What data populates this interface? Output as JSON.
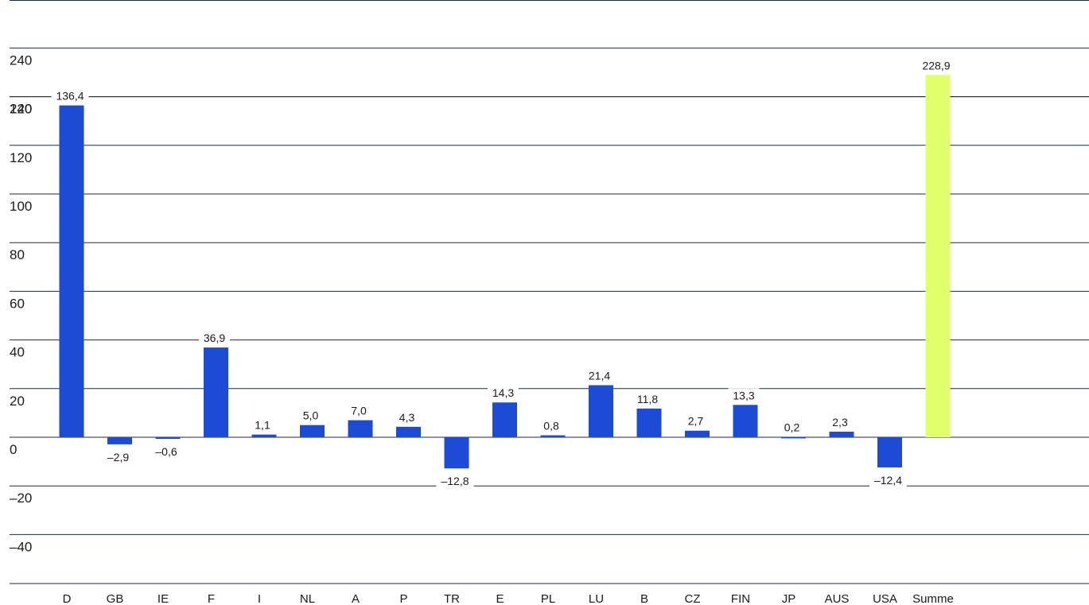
{
  "chart_data": {
    "type": "bar",
    "categories": [
      "D",
      "GB",
      "IE",
      "F",
      "I",
      "NL",
      "A",
      "P",
      "TR",
      "E",
      "PL",
      "LU",
      "B",
      "CZ",
      "FIN",
      "JP",
      "AUS",
      "USA",
      "Summe"
    ],
    "values": [
      136.4,
      -2.9,
      -0.6,
      36.9,
      1.1,
      5.0,
      7.0,
      4.3,
      -12.8,
      14.3,
      0.8,
      21.4,
      11.8,
      2.7,
      13.3,
      0.2,
      2.3,
      -12.4,
      228.9
    ],
    "value_labels": [
      "136,4",
      "–2,9",
      "–0,6",
      "36,9",
      "1,1",
      "5,0",
      "7,0",
      "4,3",
      "–12,8",
      "14,3",
      "0,8",
      "21,4",
      "11,8",
      "2,7",
      "13,3",
      "0,2",
      "2,3",
      "–12,4",
      "228,9"
    ],
    "y_tick_labels": [
      "240",
      "220",
      "140",
      "120",
      "100",
      "80",
      "60",
      "40",
      "20",
      "0",
      "–20",
      "–40"
    ],
    "axis_break": {
      "lower_segment_max": 140,
      "upper_segment_min": 220
    },
    "ylim": [
      -40,
      240
    ],
    "colors": {
      "bar": "#1c4bd6",
      "total_bar": "#e1ff6a",
      "grid": "#1f2a44"
    },
    "grid": true,
    "legend": "none",
    "title": "",
    "xlabel": "",
    "ylabel": ""
  }
}
